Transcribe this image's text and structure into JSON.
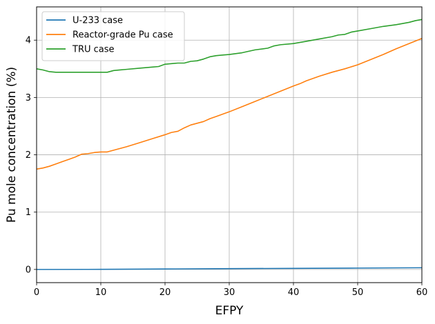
{
  "chart_data": {
    "type": "line",
    "title": "",
    "xlabel": "EFPY",
    "ylabel": "Pu mole concentration (%)",
    "xlim": [
      0,
      60
    ],
    "ylim": [
      -0.23,
      4.58
    ],
    "xticks": [
      0,
      10,
      20,
      30,
      40,
      50,
      60
    ],
    "yticks": [
      0,
      1,
      2,
      3,
      4
    ],
    "grid": true,
    "legend_position": "top-left",
    "series": [
      {
        "name": "U-233 case",
        "color": "#1f77b4",
        "x": [
          0,
          10,
          20,
          30,
          40,
          50,
          60
        ],
        "y": [
          0.0,
          0.002,
          0.008,
          0.014,
          0.019,
          0.024,
          0.03
        ]
      },
      {
        "name": "Reactor-grade Pu case",
        "color": "#ff7f0e",
        "x": [
          0,
          1,
          2,
          3,
          4,
          5,
          6,
          7,
          8,
          9,
          10,
          11,
          12,
          14,
          16,
          18,
          20,
          21,
          22,
          23,
          24,
          25,
          26,
          27,
          28,
          30,
          32,
          34,
          36,
          38,
          40,
          41,
          42,
          44,
          46,
          48,
          50,
          52,
          54,
          56,
          58,
          60
        ],
        "y": [
          1.75,
          1.77,
          1.8,
          1.84,
          1.88,
          1.92,
          1.96,
          2.01,
          2.02,
          2.04,
          2.05,
          2.05,
          2.08,
          2.14,
          2.21,
          2.28,
          2.35,
          2.39,
          2.41,
          2.47,
          2.52,
          2.55,
          2.58,
          2.63,
          2.67,
          2.75,
          2.84,
          2.93,
          3.02,
          3.11,
          3.2,
          3.24,
          3.29,
          3.37,
          3.44,
          3.5,
          3.57,
          3.66,
          3.75,
          3.85,
          3.94,
          4.03
        ]
      },
      {
        "name": "TRU case",
        "color": "#2ca02c",
        "x": [
          0,
          1,
          2,
          3,
          4,
          5,
          6,
          7,
          8,
          9,
          10,
          11,
          12,
          13,
          14,
          16,
          18,
          19,
          20,
          21,
          22,
          23,
          24,
          25,
          26,
          27,
          28,
          29,
          30,
          32,
          34,
          36,
          37,
          38,
          40,
          42,
          44,
          46,
          47,
          48,
          49,
          50,
          52,
          54,
          56,
          58,
          59,
          60
        ],
        "y": [
          3.5,
          3.48,
          3.45,
          3.44,
          3.44,
          3.44,
          3.44,
          3.44,
          3.44,
          3.44,
          3.44,
          3.44,
          3.47,
          3.48,
          3.49,
          3.51,
          3.53,
          3.54,
          3.58,
          3.59,
          3.6,
          3.6,
          3.63,
          3.64,
          3.67,
          3.71,
          3.73,
          3.74,
          3.75,
          3.78,
          3.83,
          3.86,
          3.9,
          3.92,
          3.94,
          3.98,
          4.02,
          4.06,
          4.09,
          4.1,
          4.14,
          4.16,
          4.2,
          4.24,
          4.27,
          4.31,
          4.34,
          4.36
        ]
      }
    ]
  }
}
